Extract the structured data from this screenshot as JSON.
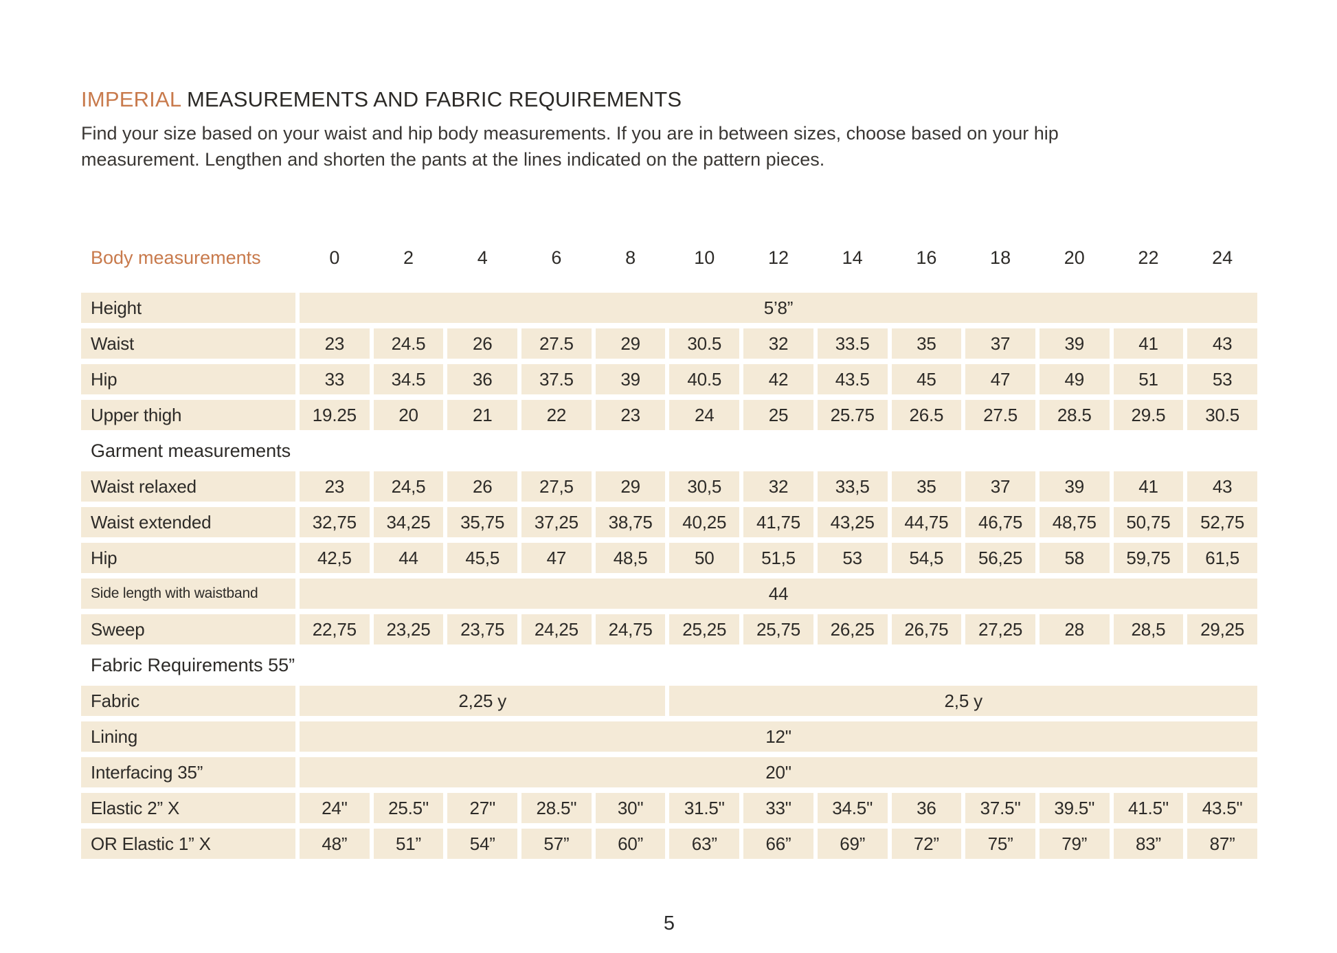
{
  "page": {
    "number": "5"
  },
  "colors": {
    "accent": "#c87a4c",
    "cell_background": "#f4ead7",
    "text": "#2d2b28"
  },
  "header": {
    "title_accent": "IMPERIAL",
    "title_rest": " MEASUREMENTS AND FABRIC REQUIREMENTS",
    "description_lines": [
      "Find your size based on your waist and hip body measurements. If you are in between sizes, choose based on your hip",
      "measurement. Lengthen and shorten the pants at the lines indicated on the pattern pieces."
    ]
  },
  "table": {
    "corner_label": "Body measurements",
    "sizes": [
      "0",
      "2",
      "4",
      "6",
      "8",
      "10",
      "12",
      "14",
      "16",
      "18",
      "20",
      "22",
      "24"
    ],
    "rows": [
      {
        "type": "value-row",
        "label": "Height",
        "span_value": "5’8”"
      },
      {
        "type": "value-row",
        "label": "Waist",
        "values": [
          "23",
          "24.5",
          "26",
          "27.5",
          "29",
          "30.5",
          "32",
          "33.5",
          "35",
          "37",
          "39",
          "41",
          "43"
        ]
      },
      {
        "type": "value-row",
        "label": "Hip",
        "values": [
          "33",
          "34.5",
          "36",
          "37.5",
          "39",
          "40.5",
          "42",
          "43.5",
          "45",
          "47",
          "49",
          "51",
          "53"
        ]
      },
      {
        "type": "value-row",
        "label": "Upper thigh",
        "values": [
          "19.25",
          "20",
          "21",
          "22",
          "23",
          "24",
          "25",
          "25.75",
          "26.5",
          "27.5",
          "28.5",
          "29.5",
          "30.5"
        ]
      },
      {
        "type": "section",
        "label": "Garment measurements"
      },
      {
        "type": "value-row",
        "label": "Waist relaxed",
        "values": [
          "23",
          "24,5",
          "26",
          "27,5",
          "29",
          "30,5",
          "32",
          "33,5",
          "35",
          "37",
          "39",
          "41",
          "43"
        ]
      },
      {
        "type": "value-row",
        "label": "Waist extended",
        "values": [
          "32,75",
          "34,25",
          "35,75",
          "37,25",
          "38,75",
          "40,25",
          "41,75",
          "43,25",
          "44,75",
          "46,75",
          "48,75",
          "50,75",
          "52,75"
        ]
      },
      {
        "type": "value-row",
        "label": "Hip",
        "values": [
          "42,5",
          "44",
          "45,5",
          "47",
          "48,5",
          "50",
          "51,5",
          "53",
          "54,5",
          "56,25",
          "58",
          "59,75",
          "61,5"
        ]
      },
      {
        "type": "value-row",
        "label": "Side length with waistband",
        "span_value": "44",
        "small_label": true
      },
      {
        "type": "value-row",
        "label": "Sweep",
        "values": [
          "22,75",
          "23,25",
          "23,75",
          "24,25",
          "24,75",
          "25,25",
          "25,75",
          "26,25",
          "26,75",
          "27,25",
          "28",
          "28,5",
          "29,25"
        ]
      },
      {
        "type": "section",
        "label": "Fabric Requirements 55”"
      },
      {
        "type": "multi-span-row",
        "label": "Fabric",
        "spans": [
          {
            "value": "2,25 y",
            "cols": 5
          },
          {
            "value": "2,5 y",
            "cols": 8
          }
        ]
      },
      {
        "type": "value-row",
        "label": "Lining",
        "span_value": "12\""
      },
      {
        "type": "value-row",
        "label": "Interfacing 35”",
        "span_value": "20\""
      },
      {
        "type": "value-row",
        "label": "Elastic 2” X",
        "values": [
          "24\"",
          "25.5\"",
          "27\"",
          "28.5\"",
          "30\"",
          "31.5\"",
          "33\"",
          "34.5\"",
          "36",
          "37.5\"",
          "39.5\"",
          "41.5\"",
          "43.5\""
        ]
      },
      {
        "type": "value-row",
        "label": "OR Elastic 1” X",
        "values": [
          "48”",
          "51”",
          "54”",
          "57”",
          "60”",
          "63”",
          "66”",
          "69”",
          "72”",
          "75”",
          "79”",
          "83”",
          "87”"
        ]
      }
    ]
  }
}
